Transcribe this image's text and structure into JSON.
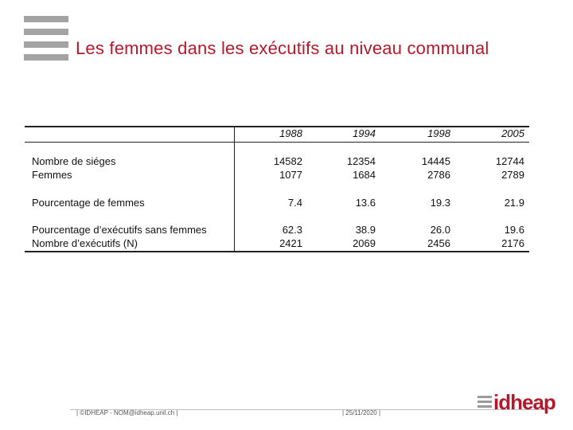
{
  "slide": {
    "title": "Les femmes dans les exécutifs au niveau communal"
  },
  "table": {
    "years": [
      "1988",
      "1994",
      "1998",
      "2005"
    ],
    "rows": [
      {
        "label": "Nombre de siéges",
        "values": [
          "14582",
          "12354",
          "14445",
          "12744"
        ]
      },
      {
        "label": "Femmes",
        "values": [
          "1077",
          "1684",
          "2786",
          "2789"
        ]
      },
      {
        "label": "Pourcentage de femmes",
        "values": [
          "7.4",
          "13.6",
          "19.3",
          "21.9"
        ]
      },
      {
        "label": "Pourcentage d’exécutifs sans femmes",
        "values": [
          "62.3",
          "38.9",
          "26.0",
          "19.6"
        ]
      },
      {
        "label": "Nombre d’exécutifs  (N)",
        "values": [
          "2421",
          "2069",
          "2456",
          "2176"
        ]
      }
    ]
  },
  "footer": {
    "contact": "| ©IDHEAP - NOM@idheap.unil.ch |",
    "date": "| 25/11/2020 |",
    "brand": "idheap"
  },
  "colors": {
    "accent": "#b3192b",
    "bars": "#a3a3a3"
  }
}
